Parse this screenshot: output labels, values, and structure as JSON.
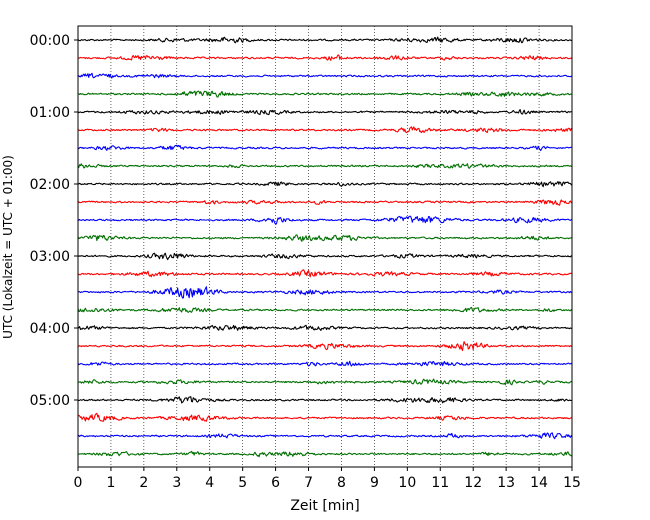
{
  "chart_data": {
    "type": "line",
    "subtype": "helicorder",
    "title": "",
    "xlabel": "Zeit  [min]",
    "ylabel": "UTC (Lokalzeit = UTC + 01:00)",
    "xlim": [
      0,
      15
    ],
    "x_ticks": [
      "0",
      "1",
      "2",
      "3",
      "4",
      "5",
      "6",
      "7",
      "8",
      "9",
      "10",
      "11",
      "12",
      "13",
      "14",
      "15"
    ],
    "y_tick_labels": [
      "00:00",
      "01:00",
      "02:00",
      "03:00",
      "04:00",
      "05:00"
    ],
    "trace_interval_min": 15,
    "trace_count": 24,
    "trace_color_cycle": [
      "#000000",
      "#ff0000",
      "#0000ff",
      "#007000"
    ],
    "grid": {
      "vertical": true,
      "style": "dotted"
    },
    "amplitude": "small continuous noise"
  }
}
